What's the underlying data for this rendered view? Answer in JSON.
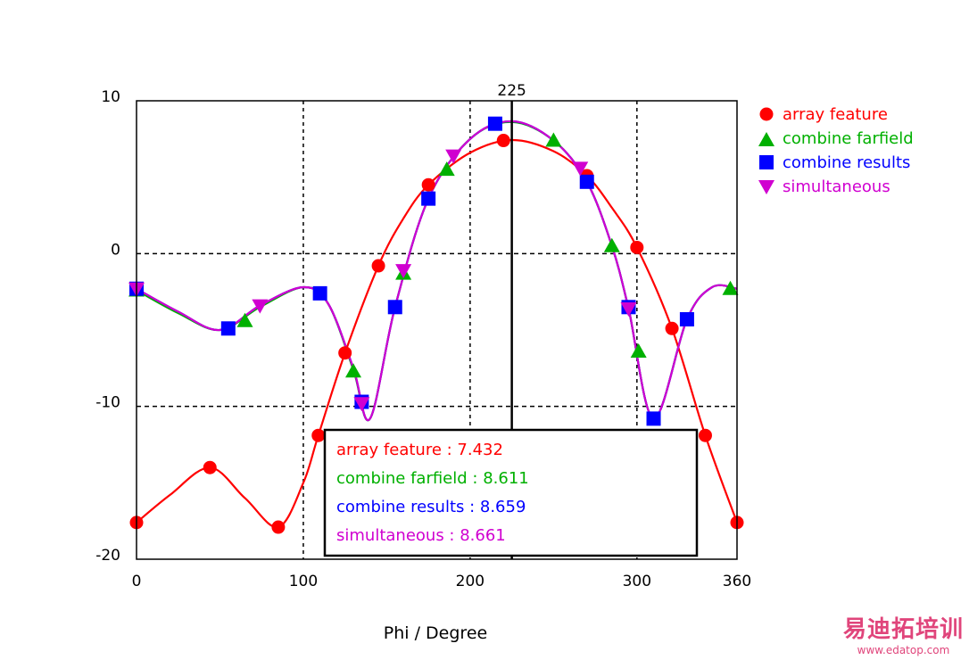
{
  "chart_data": {
    "type": "line",
    "xlabel": "Phi / Degree",
    "ylabel": "",
    "xlim": [
      0,
      360
    ],
    "ylim": [
      -20,
      10
    ],
    "xticks": [
      "0",
      "100",
      "200",
      "300",
      "360"
    ],
    "yticks": [
      "10",
      "0",
      "-10",
      "-20"
    ],
    "grid": true,
    "legend_position": "right",
    "cursor": {
      "x": 225,
      "label": "225"
    },
    "readout": [
      {
        "text": "array feature : 7.432",
        "color": "#ff0000"
      },
      {
        "text": "combine farfield : 8.611",
        "color": "#00b000"
      },
      {
        "text": "combine results : 8.659",
        "color": "#0000ff"
      },
      {
        "text": "simultaneous : 8.661",
        "color": "#d000d0"
      }
    ],
    "series": [
      {
        "name": "array feature",
        "color": "#ff0000",
        "marker": "circle",
        "x": [
          0,
          44,
          85,
          109,
          125,
          145,
          175,
          220,
          270,
          300,
          321,
          341,
          360
        ],
        "y": [
          -17.6,
          -14.0,
          -17.9,
          -11.9,
          -6.5,
          -0.8,
          4.5,
          7.4,
          5.1,
          0.4,
          -4.9,
          -11.9,
          -17.6
        ],
        "curve_x": [
          0,
          20,
          44,
          65,
          85,
          100,
          109,
          125,
          145,
          160,
          175,
          200,
          225,
          250,
          270,
          285,
          300,
          321,
          341,
          360
        ],
        "curve_y": [
          -17.6,
          -15.8,
          -14.0,
          -16.0,
          -17.9,
          -15.0,
          -11.9,
          -6.5,
          -0.8,
          2.3,
          4.5,
          6.6,
          7.432,
          6.7,
          5.1,
          3.0,
          0.4,
          -4.9,
          -11.9,
          -17.6
        ]
      },
      {
        "name": "combine farfield",
        "color": "#00b000",
        "marker": "triangle-up",
        "x": [
          0,
          65,
          130,
          160,
          186,
          250,
          285,
          301,
          356
        ],
        "y": [
          -2.4,
          -4.4,
          -7.7,
          -1.3,
          5.5,
          7.4,
          0.5,
          -6.4,
          -2.3
        ],
        "curve_x": [
          0,
          25,
          50,
          74,
          100,
          115,
          130,
          140,
          155,
          175,
          200,
          225,
          250,
          270,
          285,
          295,
          310,
          330,
          345,
          360
        ],
        "curve_y": [
          -2.4,
          -3.9,
          -5.0,
          -3.5,
          -2.2,
          -3.3,
          -7.6,
          -10.8,
          -3.5,
          3.6,
          7.5,
          8.611,
          7.4,
          4.7,
          0.5,
          -3.6,
          -10.8,
          -4.3,
          -2.2,
          -2.3
        ]
      },
      {
        "name": "combine results",
        "color": "#0000ff",
        "marker": "square",
        "x": [
          0,
          55,
          110,
          135,
          155,
          175,
          215,
          270,
          295,
          310,
          330
        ],
        "y": [
          -2.3,
          -4.9,
          -2.6,
          -9.7,
          -3.5,
          3.6,
          8.5,
          4.7,
          -3.5,
          -10.8,
          -4.3
        ],
        "curve_x": [
          0,
          25,
          50,
          74,
          100,
          115,
          130,
          140,
          155,
          175,
          200,
          225,
          250,
          270,
          285,
          295,
          310,
          330,
          345,
          360
        ],
        "curve_y": [
          -2.3,
          -3.8,
          -5.0,
          -3.4,
          -2.2,
          -3.3,
          -7.5,
          -10.8,
          -3.5,
          3.6,
          7.5,
          8.659,
          7.4,
          4.7,
          0.5,
          -3.6,
          -10.8,
          -4.3,
          -2.2,
          -2.3
        ]
      },
      {
        "name": "simultaneous",
        "color": "#d000d0",
        "marker": "triangle-down",
        "x": [
          0,
          74,
          135,
          160,
          190,
          266,
          295
        ],
        "y": [
          -2.3,
          -3.4,
          -9.8,
          -1.1,
          6.4,
          5.6,
          -3.6
        ],
        "curve_x": [
          0,
          25,
          50,
          74,
          100,
          115,
          130,
          140,
          155,
          175,
          200,
          225,
          250,
          270,
          285,
          295,
          310,
          330,
          345,
          360
        ],
        "curve_y": [
          -2.3,
          -3.8,
          -5.0,
          -3.4,
          -2.2,
          -3.3,
          -7.5,
          -10.8,
          -3.5,
          3.6,
          7.5,
          8.661,
          7.4,
          4.7,
          0.5,
          -3.6,
          -10.8,
          -4.3,
          -2.2,
          -2.3
        ]
      }
    ]
  },
  "watermark": {
    "title": "易迪拓培训",
    "url": "www.edatop.com"
  }
}
